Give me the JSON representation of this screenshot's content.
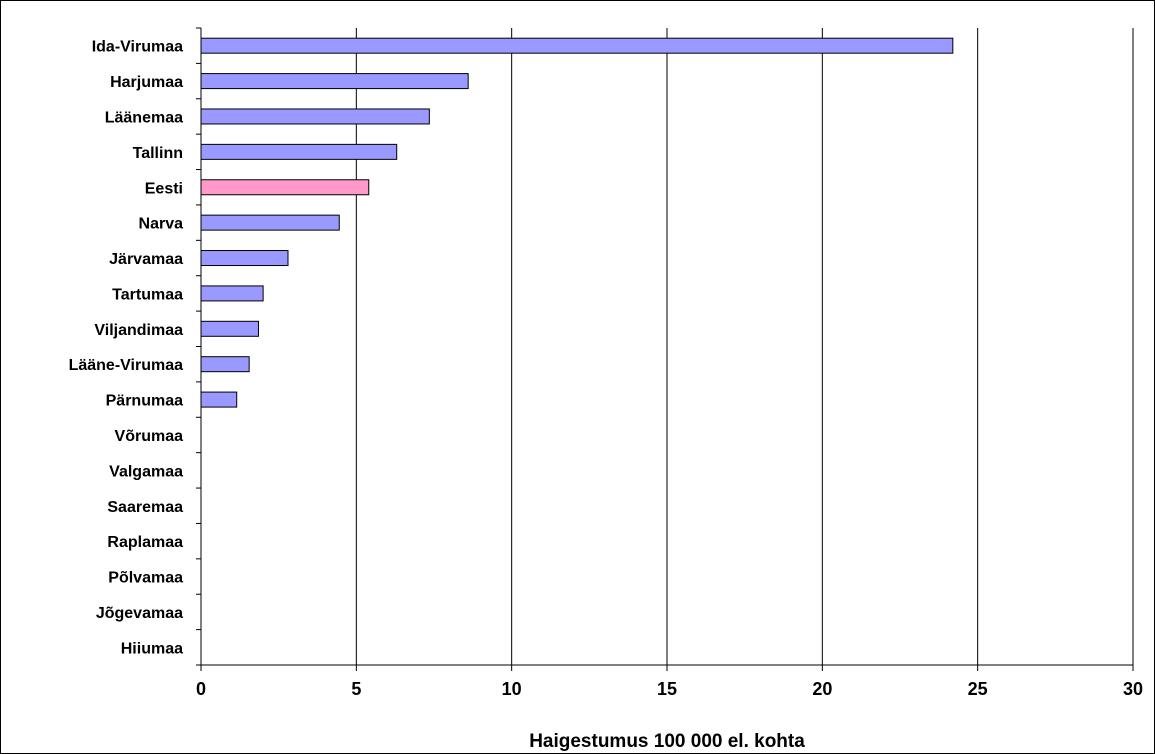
{
  "chart_data": {
    "type": "bar",
    "orientation": "horizontal",
    "title": "",
    "xlabel": "Haigestumus 100 000 el. kohta",
    "ylabel": "",
    "xlim": [
      0,
      30
    ],
    "x_ticks": [
      "0",
      "5",
      "10",
      "15",
      "20",
      "25",
      "30"
    ],
    "grid": "vertical",
    "legend": "none",
    "categories": [
      "Ida-Virumaa",
      "Harjumaa",
      "Läänemaa",
      "Tallinn",
      "Eesti",
      "Narva",
      "Järvamaa",
      "Tartumaa",
      "Viljandimaa",
      "Lääne-Virumaa",
      "Pärnumaa",
      "Võrumaa",
      "Valgamaa",
      "Saaremaa",
      "Raplamaa",
      "Põlvamaa",
      "Jõgevamaa",
      "Hiiumaa"
    ],
    "values": [
      24.2,
      8.6,
      7.35,
      6.3,
      5.4,
      4.45,
      2.8,
      2.0,
      1.85,
      1.55,
      1.15,
      0,
      0,
      0,
      0,
      0,
      0,
      0
    ],
    "highlight_category": "Eesti",
    "colors": {
      "bar": "#9999ff",
      "highlight": "#ff99cc",
      "outline": "#000000",
      "grid": "#000000"
    }
  }
}
